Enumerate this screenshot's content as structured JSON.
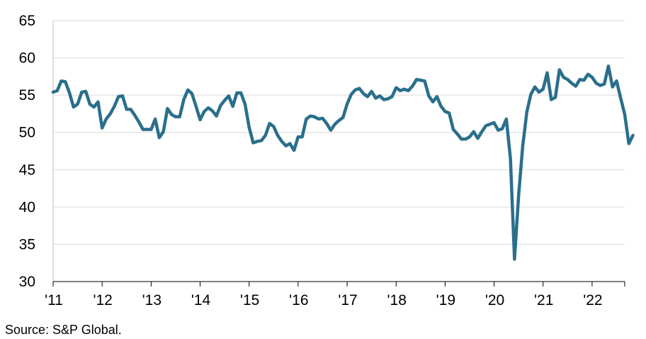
{
  "chart_data": {
    "type": "line",
    "title": "",
    "xlabel": "",
    "ylabel": "",
    "x_start": "2011-01",
    "x_end": "2022-09",
    "ylim": [
      30,
      65
    ],
    "y_ticks": [
      "30",
      "35",
      "40",
      "45",
      "50",
      "55",
      "60",
      "65"
    ],
    "x_tick_labels": [
      "'11",
      "'12",
      "'13",
      "'14",
      "'15",
      "'16",
      "'17",
      "'18",
      "'19",
      "'20",
      "'21",
      "'22"
    ],
    "grid": "horizontal",
    "legend": "none",
    "line_color": "#2A6F8C",
    "series": [
      {
        "values": [
          55.4,
          55.6,
          56.9,
          56.8,
          55.3,
          53.4,
          53.8,
          55.4,
          55.5,
          53.8,
          53.4,
          54.1,
          50.6,
          51.8,
          52.5,
          53.5,
          54.8,
          54.9,
          53.1,
          53.1,
          52.3,
          51.4,
          50.4,
          50.4,
          50.4,
          51.8,
          49.3,
          50.1,
          53.2,
          52.4,
          52.1,
          52.1,
          54.4,
          55.7,
          55.2,
          53.5,
          51.7,
          52.8,
          53.3,
          52.9,
          52.2,
          53.6,
          54.3,
          54.9,
          53.5,
          55.3,
          55.3,
          53.8,
          50.7,
          48.6,
          48.8,
          48.9,
          49.6,
          51.2,
          50.8,
          49.6,
          48.8,
          48.2,
          48.5,
          47.6,
          49.4,
          49.4,
          51.8,
          52.2,
          52.1,
          51.8,
          51.9,
          51.2,
          50.3,
          51.1,
          51.6,
          52.0,
          53.8,
          55.1,
          55.7,
          55.9,
          55.2,
          54.8,
          55.5,
          54.6,
          54.9,
          54.4,
          54.5,
          54.8,
          56.0,
          55.6,
          55.8,
          55.6,
          56.2,
          57.1,
          57.0,
          56.9,
          54.9,
          54.1,
          54.8,
          53.5,
          52.8,
          52.6,
          50.4,
          49.8,
          49.1,
          49.1,
          49.4,
          50.1,
          49.2,
          50.1,
          50.9,
          51.1,
          51.3,
          50.3,
          50.5,
          51.8,
          46.5,
          33.0,
          41.5,
          48.1,
          52.7,
          55.1,
          56.1,
          55.4,
          55.8,
          58.0,
          54.4,
          54.7,
          58.4,
          57.4,
          57.1,
          56.6,
          56.2,
          57.1,
          57.0,
          57.8,
          57.4,
          56.6,
          56.3,
          56.5,
          58.9,
          56.1,
          56.9,
          54.6,
          52.4,
          48.5,
          49.6
        ]
      }
    ]
  },
  "source_note": "Source: S&P Global."
}
